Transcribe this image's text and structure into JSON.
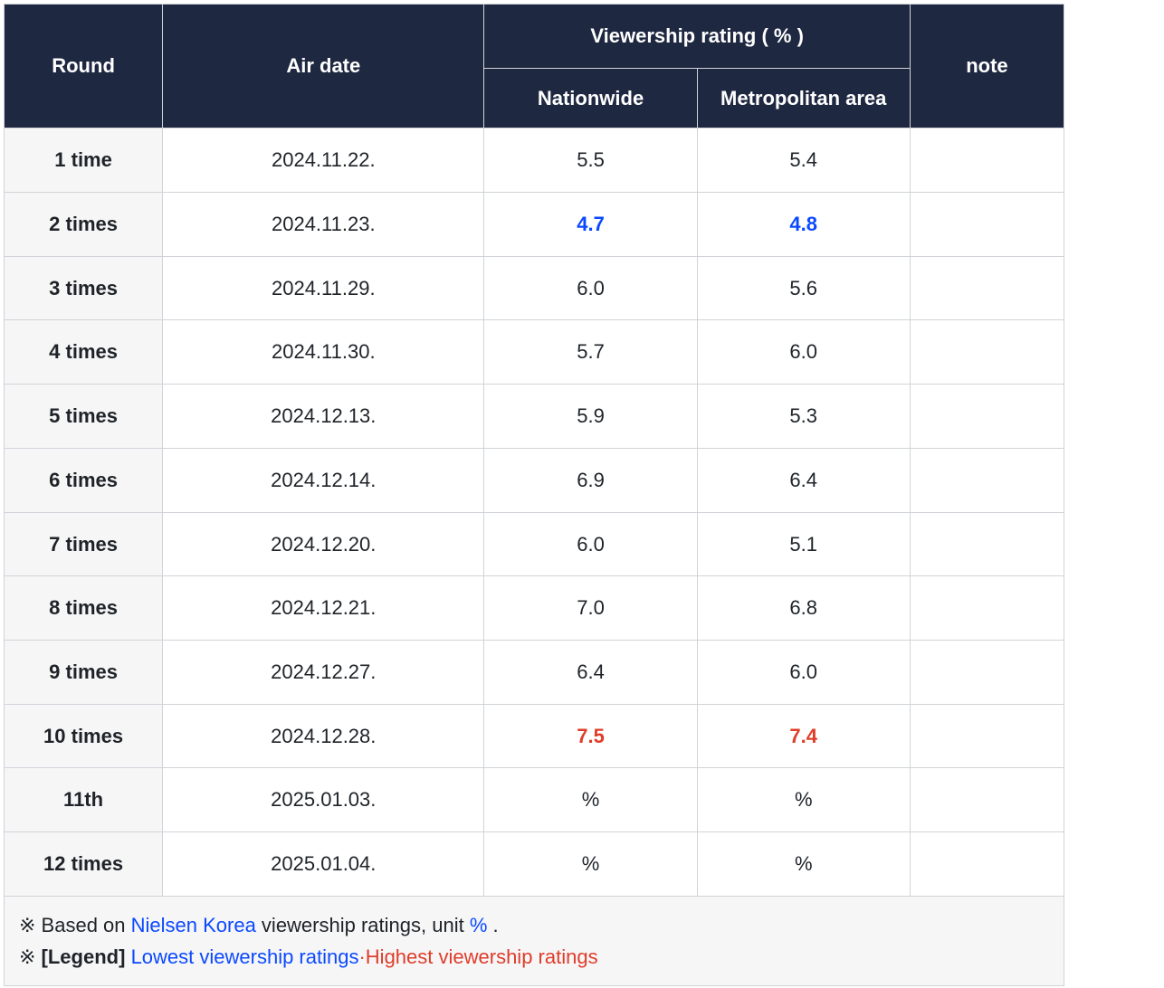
{
  "colors": {
    "header_bg": "#1f2841",
    "header_text": "#ffffff",
    "border": "#d0d4d8",
    "rowhead_bg": "#f6f6f7",
    "cell_bg": "#ffffff",
    "text": "#1f2328",
    "link": "#0b49ff",
    "low": "#0b49ff",
    "high": "#e03c2a"
  },
  "table": {
    "type": "table",
    "header": {
      "round": "Round",
      "air_date": "Air date",
      "group": "Viewership rating ( % )",
      "nationwide": "Nationwide",
      "metro": "Metropolitan area",
      "note": "note"
    },
    "rows": [
      {
        "round": "1 time",
        "date": "2024.11.22.",
        "nat": "5.5",
        "met": "5.4",
        "nat_cls": "",
        "met_cls": "",
        "note": ""
      },
      {
        "round": "2 times",
        "date": "2024.11.23.",
        "nat": "4.7",
        "met": "4.8",
        "nat_cls": "val-low",
        "met_cls": "val-low",
        "note": ""
      },
      {
        "round": "3 times",
        "date": "2024.11.29.",
        "nat": "6.0",
        "met": "5.6",
        "nat_cls": "",
        "met_cls": "",
        "note": ""
      },
      {
        "round": "4 times",
        "date": "2024.11.30.",
        "nat": "5.7",
        "met": "6.0",
        "nat_cls": "",
        "met_cls": "",
        "note": ""
      },
      {
        "round": "5 times",
        "date": "2024.12.13.",
        "nat": "5.9",
        "met": "5.3",
        "nat_cls": "",
        "met_cls": "",
        "note": ""
      },
      {
        "round": "6 times",
        "date": "2024.12.14.",
        "nat": "6.9",
        "met": "6.4",
        "nat_cls": "",
        "met_cls": "",
        "note": ""
      },
      {
        "round": "7 times",
        "date": "2024.12.20.",
        "nat": "6.0",
        "met": "5.1",
        "nat_cls": "",
        "met_cls": "",
        "note": ""
      },
      {
        "round": "8 times",
        "date": "2024.12.21.",
        "nat": "7.0",
        "met": "6.8",
        "nat_cls": "",
        "met_cls": "",
        "note": ""
      },
      {
        "round": "9 times",
        "date": "2024.12.27.",
        "nat": "6.4",
        "met": "6.0",
        "nat_cls": "",
        "met_cls": "",
        "note": ""
      },
      {
        "round": "10 times",
        "date": "2024.12.28.",
        "nat": "7.5",
        "met": "7.4",
        "nat_cls": "val-high",
        "met_cls": "val-high",
        "note": ""
      },
      {
        "round": "11th",
        "date": "2025.01.03.",
        "nat": "%",
        "met": "%",
        "nat_cls": "",
        "met_cls": "",
        "note": ""
      },
      {
        "round": "12 times",
        "date": "2025.01.04.",
        "nat": "%",
        "met": "%",
        "nat_cls": "",
        "met_cls": "",
        "note": ""
      }
    ]
  },
  "footer": {
    "line1_prefix": "※ Based on ",
    "line1_link": "Nielsen Korea",
    "line1_mid": " viewership ratings, unit ",
    "line1_unit": "%",
    "line1_suffix": " .",
    "line2_prefix": "※ ",
    "line2_legend_label": "[Legend]",
    "line2_low": "Lowest viewership ratings",
    "line2_sep": "·",
    "line2_high": "Highest viewership ratings"
  }
}
